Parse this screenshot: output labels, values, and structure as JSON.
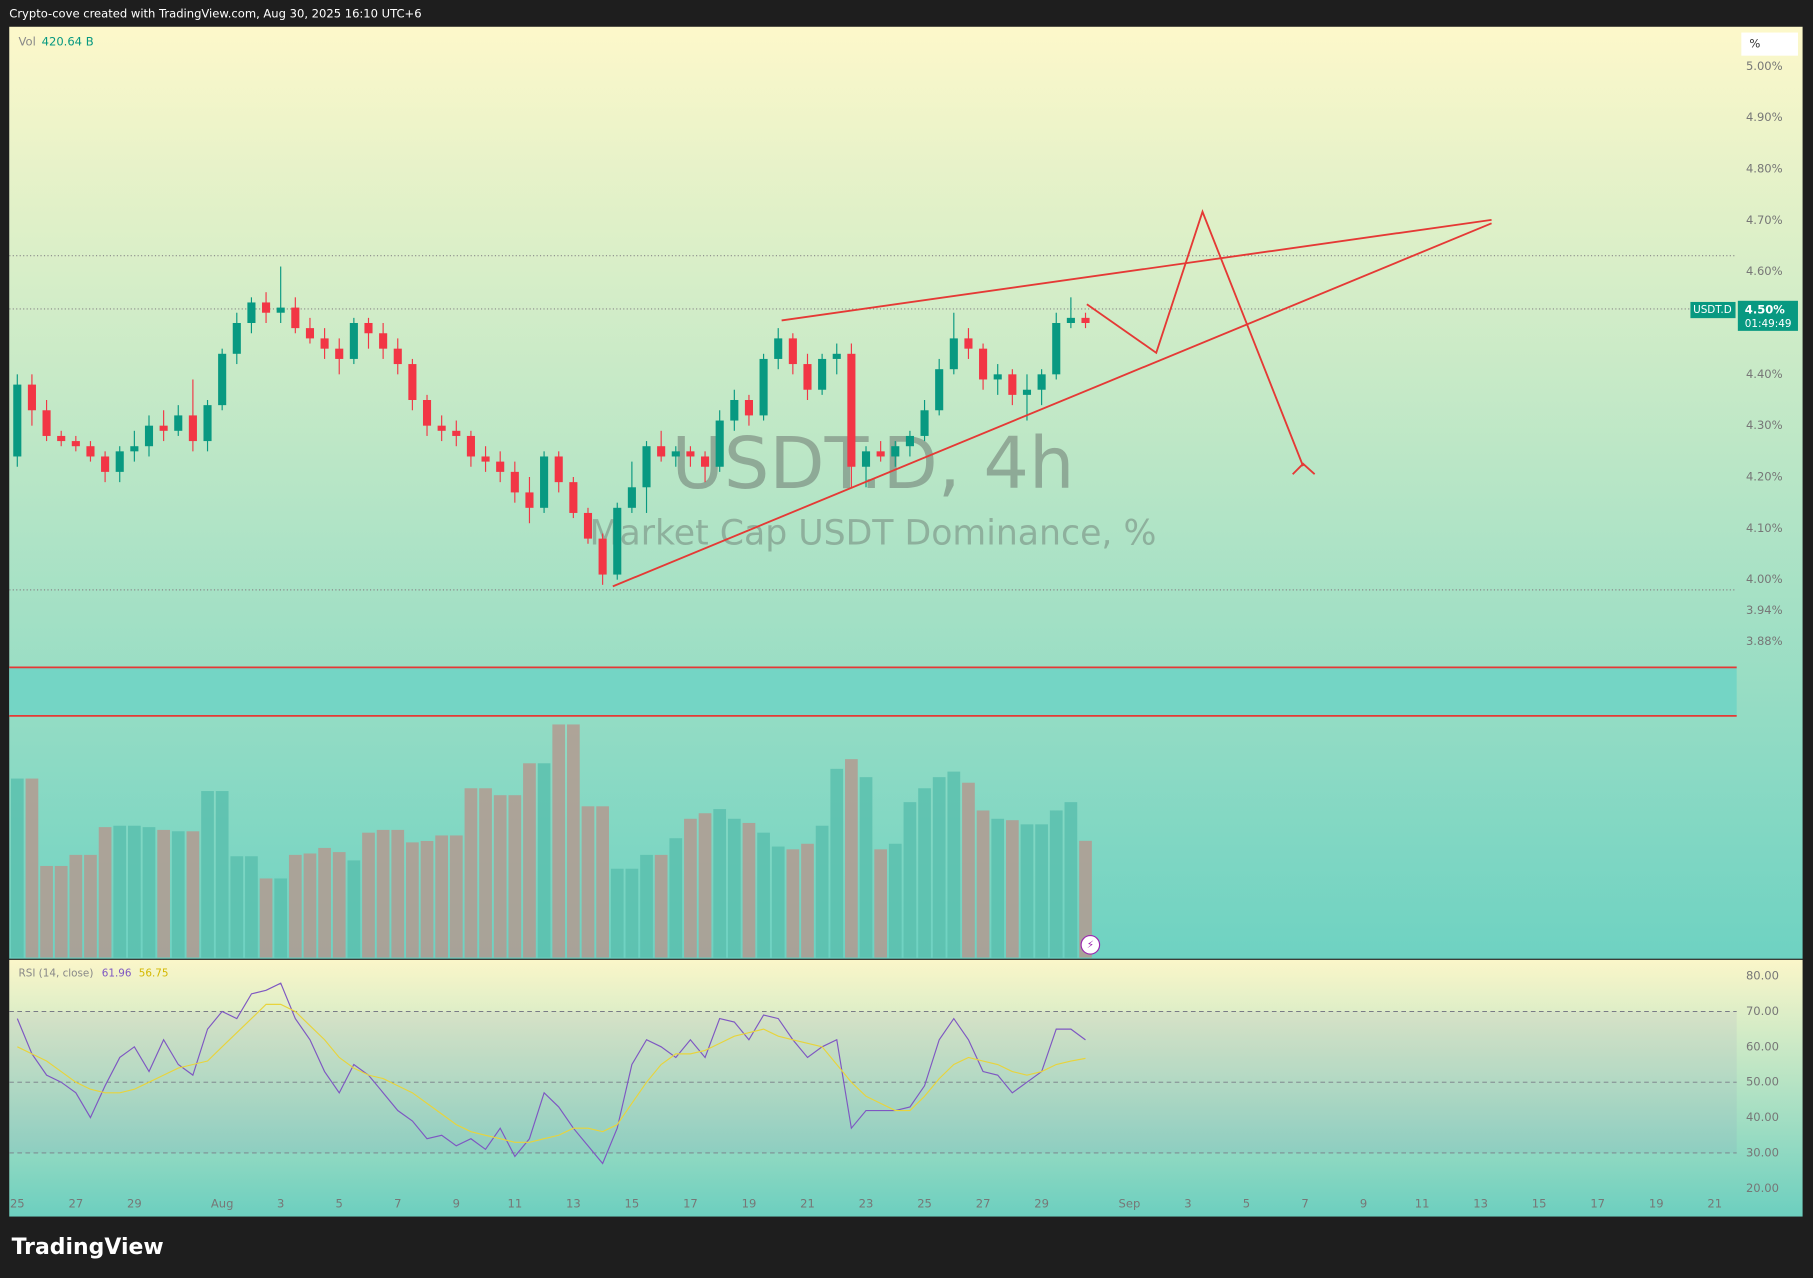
{
  "header": "Crypto-cove created with TradingView.com, Aug 30, 2025 16:10 UTC+6",
  "footer": "TradingView",
  "chart_data": [
    {
      "type": "candlestick",
      "title": "USDT.D, 4h",
      "subtitle": "Market Cap USDT Dominance, %",
      "unit_label": "%",
      "price_label": {
        "symbol": "USDT.D",
        "value": "4.50%",
        "countdown": "01:49:49"
      },
      "up_color": "#089981",
      "down_color": "#f23645",
      "xlim": [
        -0.55,
        117.5
      ],
      "xticks": [
        {
          "value": 0,
          "label": "25"
        },
        {
          "value": 4,
          "label": "27"
        },
        {
          "value": 8,
          "label": "29"
        },
        {
          "value": 14,
          "label": "Aug"
        },
        {
          "value": 18,
          "label": "3"
        },
        {
          "value": 22,
          "label": "5"
        },
        {
          "value": 26,
          "label": "7"
        },
        {
          "value": 30,
          "label": "9"
        },
        {
          "value": 34,
          "label": "11"
        },
        {
          "value": 38,
          "label": "13"
        },
        {
          "value": 42,
          "label": "15"
        },
        {
          "value": 46,
          "label": "17"
        },
        {
          "value": 50,
          "label": "19"
        },
        {
          "value": 54,
          "label": "21"
        },
        {
          "value": 58,
          "label": "23"
        },
        {
          "value": 62,
          "label": "25"
        },
        {
          "value": 66,
          "label": "27"
        },
        {
          "value": 70,
          "label": "29"
        },
        {
          "value": 76,
          "label": "Sep"
        },
        {
          "value": 80,
          "label": "3"
        },
        {
          "value": 84,
          "label": "5"
        },
        {
          "value": 88,
          "label": "7"
        },
        {
          "value": 92,
          "label": "9"
        },
        {
          "value": 96,
          "label": "11"
        },
        {
          "value": 100,
          "label": "13"
        },
        {
          "value": 104,
          "label": "15"
        },
        {
          "value": 108,
          "label": "17"
        },
        {
          "value": 112,
          "label": "19"
        },
        {
          "value": 116,
          "label": "21"
        }
      ],
      "ylim": [
        3.264,
        5.077
      ],
      "yticks": [
        {
          "value": 5.0,
          "label": "5.00%"
        },
        {
          "value": 4.9,
          "label": "4.90%"
        },
        {
          "value": 4.8,
          "label": "4.80%"
        },
        {
          "value": 4.7,
          "label": "4.70%"
        },
        {
          "value": 4.6,
          "label": "4.60%"
        },
        {
          "value": 4.4,
          "label": "4.40%"
        },
        {
          "value": 4.3,
          "label": "4.30%"
        },
        {
          "value": 4.2,
          "label": "4.20%"
        },
        {
          "value": 4.1,
          "label": "4.10%"
        },
        {
          "value": 4.0,
          "label": "4.00%"
        },
        {
          "value": 3.94,
          "label": "3.94%"
        },
        {
          "value": 3.88,
          "label": "3.88%"
        }
      ],
      "open": [
        4.24,
        4.38,
        4.33,
        4.28,
        4.27,
        4.26,
        4.24,
        4.21,
        4.25,
        4.26,
        4.3,
        4.29,
        4.32,
        4.27,
        4.34,
        4.44,
        4.5,
        4.54,
        4.52,
        4.53,
        4.49,
        4.47,
        4.45,
        4.43,
        4.5,
        4.48,
        4.45,
        4.42,
        4.35,
        4.3,
        4.29,
        4.28,
        4.24,
        4.23,
        4.21,
        4.17,
        4.14,
        4.24,
        4.19,
        4.13,
        4.08,
        4.01,
        4.14,
        4.18,
        4.26,
        4.24,
        4.25,
        4.24,
        4.22,
        4.31,
        4.35,
        4.32,
        4.43,
        4.47,
        4.42,
        4.37,
        4.43,
        4.44,
        4.22,
        4.25,
        4.24,
        4.26,
        4.28,
        4.33,
        4.41,
        4.47,
        4.45,
        4.39,
        4.4,
        4.36,
        4.37,
        4.4,
        4.5,
        4.51
      ],
      "high": [
        4.4,
        4.4,
        4.35,
        4.29,
        4.28,
        4.27,
        4.25,
        4.26,
        4.29,
        4.32,
        4.33,
        4.34,
        4.39,
        4.35,
        4.45,
        4.52,
        4.55,
        4.56,
        4.61,
        4.55,
        4.51,
        4.49,
        4.47,
        4.51,
        4.51,
        4.5,
        4.47,
        4.43,
        4.36,
        4.32,
        4.31,
        4.29,
        4.26,
        4.25,
        4.23,
        4.2,
        4.25,
        4.25,
        4.2,
        4.14,
        4.09,
        4.15,
        4.23,
        4.27,
        4.29,
        4.26,
        4.26,
        4.25,
        4.33,
        4.37,
        4.36,
        4.44,
        4.49,
        4.48,
        4.44,
        4.44,
        4.46,
        4.46,
        4.26,
        4.27,
        4.27,
        4.29,
        4.35,
        4.43,
        4.52,
        4.49,
        4.46,
        4.42,
        4.41,
        4.4,
        4.41,
        4.52,
        4.55,
        4.52
      ],
      "low": [
        4.22,
        4.3,
        4.27,
        4.26,
        4.25,
        4.23,
        4.19,
        4.19,
        4.23,
        4.24,
        4.27,
        4.28,
        4.25,
        4.25,
        4.33,
        4.42,
        4.48,
        4.5,
        4.5,
        4.48,
        4.46,
        4.43,
        4.4,
        4.42,
        4.45,
        4.43,
        4.4,
        4.33,
        4.28,
        4.27,
        4.26,
        4.22,
        4.21,
        4.19,
        4.15,
        4.11,
        4.13,
        4.17,
        4.12,
        4.07,
        3.99,
        4.0,
        4.13,
        4.13,
        4.23,
        4.22,
        4.22,
        4.19,
        4.21,
        4.29,
        4.3,
        4.31,
        4.41,
        4.4,
        4.35,
        4.36,
        4.4,
        4.18,
        4.18,
        4.23,
        4.22,
        4.24,
        4.27,
        4.32,
        4.4,
        4.43,
        4.37,
        4.36,
        4.34,
        4.31,
        4.34,
        4.39,
        4.49,
        4.49
      ],
      "close": [
        4.38,
        4.33,
        4.28,
        4.27,
        4.26,
        4.24,
        4.21,
        4.25,
        4.26,
        4.3,
        4.29,
        4.32,
        4.27,
        4.34,
        4.44,
        4.5,
        4.54,
        4.52,
        4.53,
        4.49,
        4.47,
        4.45,
        4.43,
        4.5,
        4.48,
        4.45,
        4.42,
        4.35,
        4.3,
        4.29,
        4.28,
        4.24,
        4.23,
        4.21,
        4.17,
        4.14,
        4.24,
        4.19,
        4.13,
        4.08,
        4.01,
        4.14,
        4.18,
        4.26,
        4.24,
        4.25,
        4.24,
        4.22,
        4.31,
        4.35,
        4.32,
        4.43,
        4.47,
        4.42,
        4.37,
        4.43,
        4.44,
        4.22,
        4.25,
        4.24,
        4.26,
        4.28,
        4.33,
        4.41,
        4.47,
        4.45,
        4.39,
        4.4,
        4.36,
        4.37,
        4.4,
        4.5,
        4.51,
        4.5
      ],
      "volume": {
        "name": "Vol",
        "last_label": "420.64 B",
        "ylim": [
          0,
          1000
        ],
        "up_color": "#5bbfae",
        "down_color": "#b39a91",
        "values": [
          645,
          645,
          330,
          330,
          370,
          370,
          470,
          475,
          475,
          470,
          460,
          455,
          455,
          600,
          600,
          365,
          365,
          285,
          285,
          370,
          375,
          395,
          380,
          350,
          450,
          460,
          460,
          415,
          420,
          440,
          440,
          610,
          610,
          585,
          585,
          700,
          700,
          840,
          840,
          545,
          545,
          320,
          320,
          370,
          370,
          430,
          500,
          520,
          535,
          500,
          485,
          450,
          400,
          390,
          410,
          475,
          680,
          715,
          650,
          390,
          410,
          560,
          610,
          650,
          670,
          630,
          530,
          500,
          495,
          480,
          480,
          530,
          560,
          420.64
        ]
      }
    },
    {
      "type": "line",
      "title": "RSI (14, close)",
      "ylim": [
        12,
        84.6
      ],
      "yticks": [
        {
          "value": 80,
          "label": "80.00"
        },
        {
          "value": 70,
          "label": "70.00"
        },
        {
          "value": 60,
          "label": "60.00"
        },
        {
          "value": 50,
          "label": "50.00"
        },
        {
          "value": 40,
          "label": "40.00"
        },
        {
          "value": 30,
          "label": "30.00"
        },
        {
          "value": 20,
          "label": "20.00"
        }
      ],
      "levels": [
        70,
        50,
        30
      ],
      "series": [
        {
          "color": "#7e57c2",
          "values": [
            68,
            58,
            52,
            50,
            47,
            40,
            49,
            57,
            60,
            53,
            62,
            55,
            52,
            65,
            70,
            68,
            75,
            76,
            78,
            68,
            62,
            53,
            47,
            55,
            52,
            47,
            42,
            39,
            34,
            35,
            32,
            34,
            31,
            37,
            29,
            34,
            47,
            43,
            37,
            32,
            27,
            37,
            55,
            62,
            60,
            57,
            62,
            57,
            68,
            67,
            62,
            69,
            68,
            62,
            57,
            60,
            62,
            37,
            42,
            42,
            42,
            43,
            49,
            62,
            68,
            62,
            53,
            52,
            47,
            50,
            53,
            65,
            65,
            61.96
          ]
        },
        {
          "color": "#e8d43c",
          "values": [
            60,
            58,
            56,
            53,
            50,
            48,
            47,
            47,
            48,
            50,
            52,
            54,
            55,
            56,
            60,
            64,
            68,
            72,
            72,
            70,
            66,
            62,
            57,
            54,
            52,
            51,
            49,
            47,
            44,
            41,
            38,
            36,
            35,
            34,
            33,
            33,
            34,
            35,
            37,
            37,
            36,
            38,
            44,
            50,
            55,
            58,
            58,
            59,
            61,
            63,
            64,
            65,
            63,
            62,
            61,
            60,
            55,
            50,
            46,
            44,
            42,
            42,
            46,
            51,
            55,
            57,
            56,
            55,
            53,
            52,
            53,
            55,
            56,
            56.75
          ]
        }
      ]
    }
  ]
}
